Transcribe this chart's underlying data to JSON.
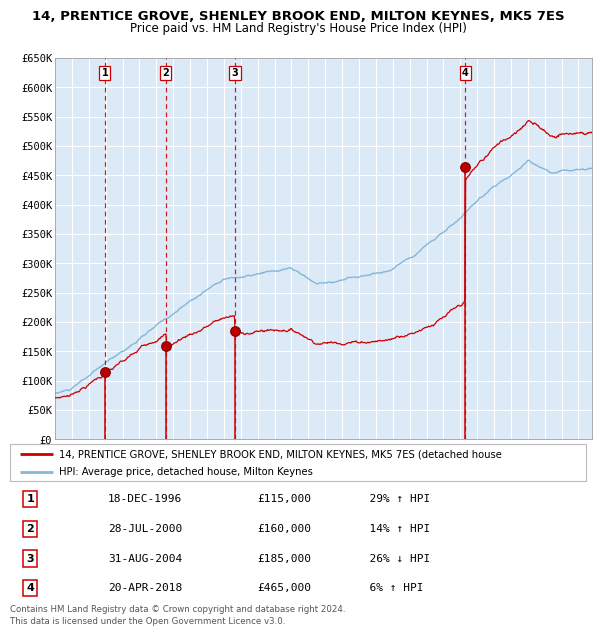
{
  "title": "14, PRENTICE GROVE, SHENLEY BROOK END, MILTON KEYNES, MK5 7ES",
  "subtitle": "Price paid vs. HM Land Registry's House Price Index (HPI)",
  "ylim": [
    0,
    650000
  ],
  "yticks": [
    0,
    50000,
    100000,
    150000,
    200000,
    250000,
    300000,
    350000,
    400000,
    450000,
    500000,
    550000,
    600000,
    650000
  ],
  "ytick_labels": [
    "£0",
    "£50K",
    "£100K",
    "£150K",
    "£200K",
    "£250K",
    "£300K",
    "£350K",
    "£400K",
    "£450K",
    "£500K",
    "£550K",
    "£600K",
    "£650K"
  ],
  "xlim_start": 1994.0,
  "xlim_end": 2025.8,
  "plot_bg_color": "#dce9f7",
  "red_line_color": "#cc0000",
  "blue_line_color": "#85b8d8",
  "dashed_line_color": "#cc0000",
  "transactions": [
    {
      "num": 1,
      "date_label": "18-DEC-1996",
      "year": 1996.96,
      "price": 115000,
      "hpi_pct": "29%",
      "hpi_dir": "↑"
    },
    {
      "num": 2,
      "date_label": "28-JUL-2000",
      "year": 2000.57,
      "price": 160000,
      "hpi_pct": "14%",
      "hpi_dir": "↑"
    },
    {
      "num": 3,
      "date_label": "31-AUG-2004",
      "year": 2004.66,
      "price": 185000,
      "hpi_pct": "26%",
      "hpi_dir": "↓"
    },
    {
      "num": 4,
      "date_label": "20-APR-2018",
      "year": 2018.3,
      "price": 465000,
      "hpi_pct": "6%",
      "hpi_dir": "↑"
    }
  ],
  "legend_red": "14, PRENTICE GROVE, SHENLEY BROOK END, MILTON KEYNES, MK5 7ES (detached house",
  "legend_blue": "HPI: Average price, detached house, Milton Keynes",
  "footer": "Contains HM Land Registry data © Crown copyright and database right 2024.\nThis data is licensed under the Open Government Licence v3.0.",
  "title_fontsize": 9.5,
  "subtitle_fontsize": 8.5,
  "tick_fontsize": 7.5
}
